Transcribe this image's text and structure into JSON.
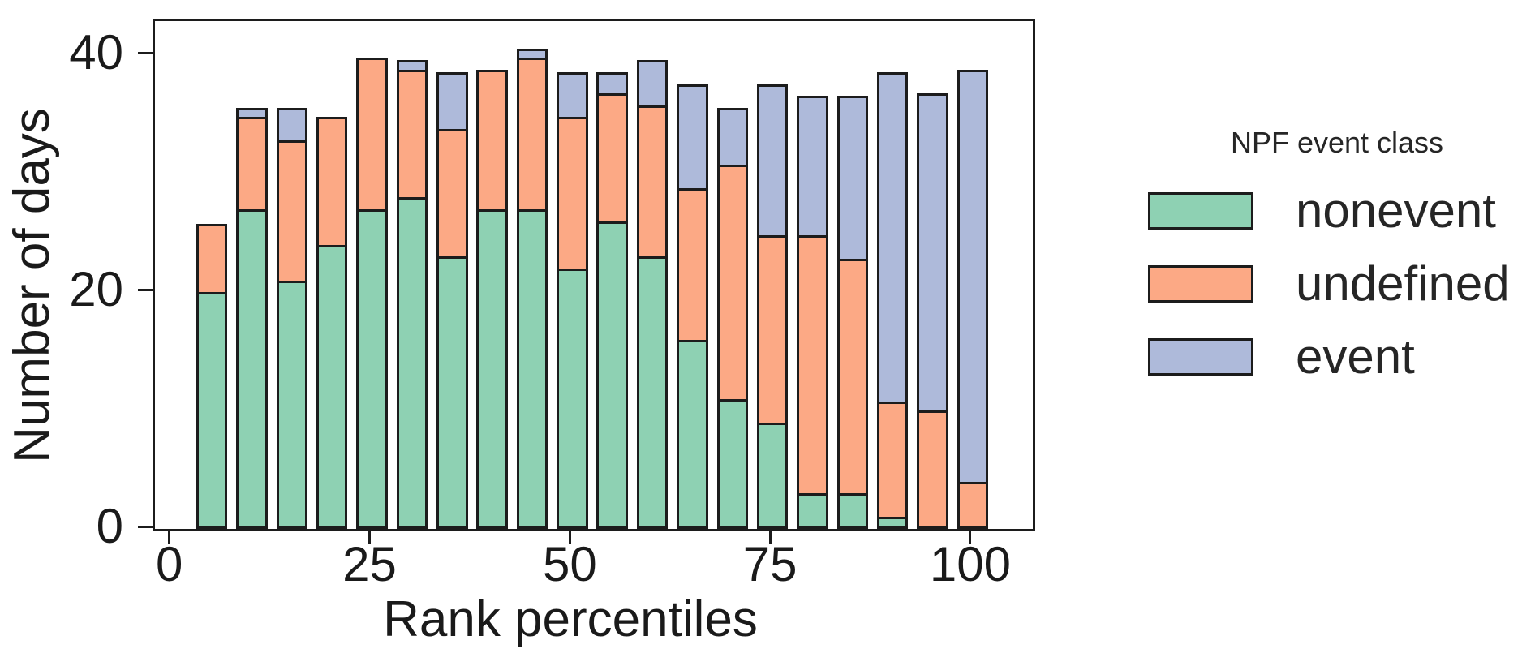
{
  "chart_data": {
    "type": "bar",
    "stacked": true,
    "title": "",
    "xlabel": "Rank percentiles",
    "ylabel": "Number of days",
    "categories": [
      5,
      10,
      15,
      20,
      25,
      30,
      35,
      40,
      45,
      50,
      55,
      60,
      65,
      70,
      75,
      80,
      85,
      90,
      95,
      100
    ],
    "series": [
      {
        "name": "nonevent",
        "color": "#8ed1b3",
        "values": [
          20,
          27,
          21,
          24,
          27,
          28,
          23,
          27,
          27,
          22,
          26,
          23,
          16,
          11,
          9,
          3,
          3,
          1,
          0,
          0
        ]
      },
      {
        "name": "undefined",
        "color": "#fca985",
        "values": [
          6,
          8,
          12,
          11,
          13,
          11,
          11,
          12,
          13,
          13,
          11,
          13,
          13,
          20,
          16,
          22,
          20,
          10,
          10,
          4
        ]
      },
      {
        "name": "event",
        "color": "#aebada",
        "values": [
          0,
          1,
          3,
          0,
          0,
          1,
          5,
          0,
          1,
          4,
          2,
          4,
          9,
          5,
          13,
          12,
          14,
          28,
          27,
          35
        ]
      }
    ],
    "bar_totals": [
      26,
      36,
      36,
      35,
      40,
      40,
      39,
      39,
      41,
      39,
      39,
      40,
      38,
      36,
      38,
      37,
      37,
      39,
      37,
      39
    ],
    "xticks": [
      0,
      25,
      50,
      75,
      100
    ],
    "yticks": [
      0,
      20,
      40
    ],
    "xlim": [
      -2.1,
      107.5
    ],
    "ylim": [
      0,
      42.9
    ],
    "grid": false,
    "edge_color": "#1c1c1c",
    "legend": {
      "title": "NPF event class",
      "position": "right",
      "entries": [
        "nonevent",
        "undefined",
        "event"
      ]
    }
  }
}
